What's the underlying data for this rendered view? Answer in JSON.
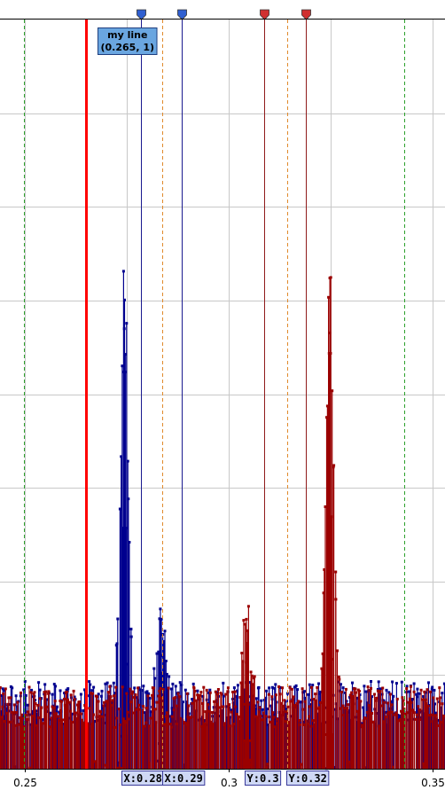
{
  "chart_data": {
    "type": "scatter",
    "title": "",
    "xlabel": "",
    "ylabel": "",
    "xlim": [
      0.244,
      0.353
    ],
    "ylim": [
      0,
      1.6
    ],
    "grid": true,
    "x_ticks": [
      {
        "value": 0.25,
        "label": "0.25"
      },
      {
        "value": 0.3,
        "label": "0.3"
      },
      {
        "value": 0.35,
        "label": "0.35"
      }
    ],
    "series": [
      {
        "color": "#00008f",
        "baseline": 0.17,
        "peaks": [
          {
            "x": 0.2745,
            "y": 0.95
          },
          {
            "x": 0.2835,
            "y": 0.19
          }
        ]
      },
      {
        "color": "#9b0000",
        "baseline": 0.16,
        "peaks": [
          {
            "x": 0.3248,
            "y": 1.0
          },
          {
            "x": 0.3045,
            "y": 0.22
          }
        ]
      }
    ],
    "reference_line": {
      "x": 0.265,
      "color": "#ff0000",
      "tooltip_title": "my line",
      "tooltip_value": "(0.265, 1)"
    },
    "cursors": [
      {
        "x": 0.2786,
        "color": "#1a1a8f",
        "marker_color": "#2f5fd0",
        "label": "X:0.28"
      },
      {
        "x": 0.2885,
        "color": "#1a1a8f",
        "marker_color": "#2f5fd0",
        "label": "X:0.29"
      },
      {
        "x": 0.3087,
        "color": "#8f1a1a",
        "marker_color": "#d03030",
        "label": "Y:0.3"
      },
      {
        "x": 0.3189,
        "color": "#8f1a1a",
        "marker_color": "#d03030",
        "label": "Y:0.32"
      }
    ],
    "dashed_lines": [
      {
        "x": 0.2499,
        "color": "#2ca02c"
      },
      {
        "x": 0.2838,
        "color": "#e08a2c"
      },
      {
        "x": 0.3144,
        "color": "#e08a2c"
      },
      {
        "x": 0.3431,
        "color": "#2ca02c"
      }
    ]
  }
}
